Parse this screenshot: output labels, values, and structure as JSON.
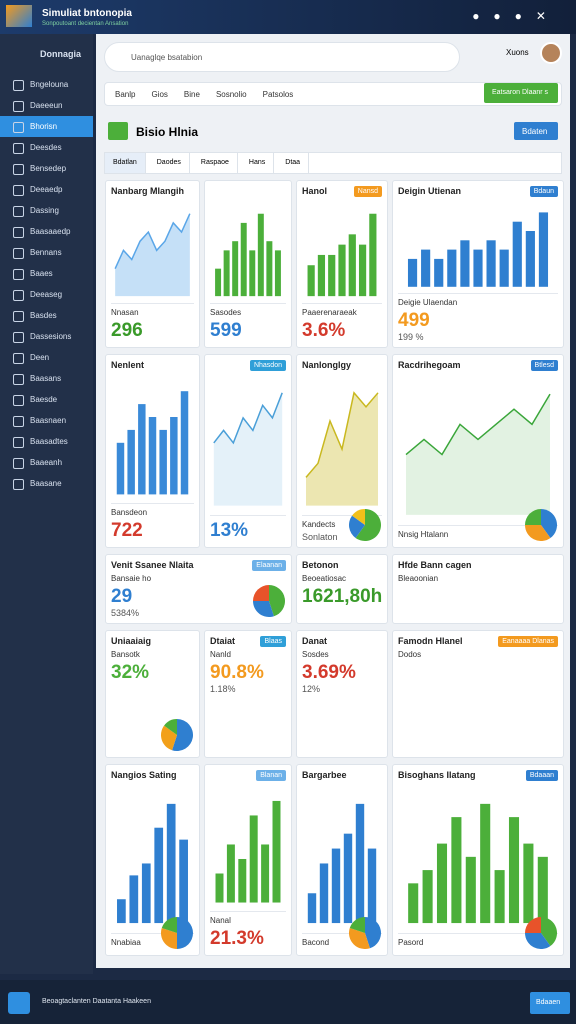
{
  "app": {
    "title": "Simuliat bntonopia",
    "subtitle": "Sonpoutoant decientan Ansation"
  },
  "sidebar": {
    "brand": "Donnagia",
    "items": [
      "Bngelouna",
      "Daeeeun",
      "Bhorisn",
      "Deesdes",
      "Bensedep",
      "Deeaedp",
      "Dassing",
      "Baasaaedp",
      "Bennans",
      "Baaes",
      "Deeaseg",
      "Basdes",
      "Dassesions",
      "Deen",
      "Baasans",
      "Baesde",
      "Baasnaen",
      "Baasadtes",
      "Baaeanh",
      "Baasane"
    ],
    "active": 2
  },
  "search": {
    "placeholder": "Uanaglqe bsatabion",
    "user": "Xuons"
  },
  "filters": [
    "Banlp",
    "Gios",
    "Bine",
    "Sosnolio",
    "Patsolos"
  ],
  "action": "Eatsaron Dlaanr s",
  "section": {
    "title": "Bisio Hlnia",
    "button": "Bdaten"
  },
  "tabs": [
    "Bdatlan",
    "Daodes",
    "Raspaoe",
    "Hans",
    "Dtaa"
  ],
  "cards": [
    {
      "title": "Nanbarg Mlangih",
      "chart": {
        "kind": "area",
        "color": "#5aa6e8",
        "values": [
          3,
          5,
          4,
          6,
          7,
          5,
          6,
          8,
          7,
          9
        ]
      },
      "label": "Nnasan",
      "value": "296",
      "value_color": "#3a9a2a"
    },
    {
      "chart": {
        "kind": "bar",
        "color": "#4caf3a",
        "values": [
          3,
          5,
          6,
          8,
          5,
          9,
          6,
          5
        ]
      },
      "label": "Sasodes",
      "value": "599",
      "value_color": "#2f7fd0"
    },
    {
      "title": "Hanol",
      "chart": {
        "kind": "bar",
        "color": "#4caf3a",
        "values": [
          3,
          4,
          4,
          5,
          6,
          5,
          8
        ]
      },
      "label": "Paaerenaraeak",
      "value": "3.6%",
      "value_color": "#d33a2c",
      "badge": "Nansd",
      "badge_color": "#f39a1f"
    },
    {
      "title": "Deigin Utienan",
      "badge": "Bdaun",
      "badge_color": "#2f7fd0",
      "chart": {
        "kind": "bar",
        "color": "#2f7fd0",
        "values": [
          3,
          4,
          3,
          4,
          5,
          4,
          5,
          4,
          7,
          6,
          8
        ]
      },
      "label": "Deigie Ulaendan",
      "value": "499",
      "value_color": "#f39a1f",
      "extra": "199 %"
    },
    {
      "title": "Nenlent",
      "chart": {
        "kind": "bar",
        "color": "#3a8ad8",
        "values": [
          4,
          5,
          7,
          6,
          5,
          6,
          8
        ]
      },
      "label": "Bansdeon",
      "value": "722",
      "value_color": "#d33a2c"
    },
    {
      "chart": {
        "kind": "line",
        "color": "#4a9fd8",
        "values": [
          5,
          6,
          5,
          7,
          6,
          8,
          7,
          9
        ]
      },
      "badge": "Nhasdon",
      "badge_color": "#2f9fd8",
      "value": "13%",
      "value_color": "#2f7fd0"
    },
    {
      "title": "Nanlonglgy",
      "chart": {
        "kind": "area",
        "color": "#c9b81f",
        "values": [
          2,
          3,
          6,
          4,
          8,
          7,
          8
        ]
      },
      "label": "Kandects",
      "extra": "Sonlaton",
      "pie": {
        "values": [
          60,
          25,
          15
        ],
        "colors": [
          "#4caf3a",
          "#2f7fd0",
          "#f2c01a"
        ]
      }
    },
    {
      "title": "Racdrihegoam",
      "badge": "Btlesd",
      "badge_color": "#2f7fd0",
      "chart": {
        "kind": "line",
        "color": "#3aa63a",
        "values": [
          4,
          5,
          4,
          6,
          5,
          6,
          7,
          6,
          8
        ]
      },
      "label": "Nnsig Htalann",
      "pie": {
        "values": [
          40,
          35,
          25
        ],
        "colors": [
          "#2f7fd0",
          "#f39a1f",
          "#4caf3a"
        ]
      }
    },
    {
      "title": "Venit Ssanee Nlaita",
      "badge": "Elaanan",
      "badge_color": "#6cb0e8",
      "label": "Bansaie ho",
      "value": "29",
      "value_color": "#2f7fd0",
      "extra": "5384%",
      "pie": {
        "values": [
          45,
          30,
          25
        ],
        "colors": [
          "#4caf3a",
          "#2f7fd0",
          "#e8532a"
        ]
      }
    },
    {
      "title": "Betonon",
      "label": "Beoeatiosac",
      "value": "1621,80h",
      "value_color": "#3a9a2a"
    },
    {
      "title": "Hfde Bann cagen",
      "label": "Bleaoonian"
    },
    {
      "title": "Uniaaiaig",
      "value": "32%",
      "value_color": "#4caf3a",
      "label": "Bansotk",
      "pie": {
        "values": [
          55,
          30,
          15
        ],
        "colors": [
          "#2f7fd0",
          "#f2a01a",
          "#4caf3a"
        ]
      }
    },
    {
      "title": "Dtaiat",
      "value": "90.8%",
      "value_color": "#f39a1f",
      "label": "Nanld",
      "extra": "1.18%",
      "badge": "Blaas",
      "badge_color": "#2f9fd8"
    },
    {
      "title": "Danat",
      "value": "3.69%",
      "value_color": "#d33a2c",
      "label": "Sosdes",
      "extra": "12%"
    },
    {
      "title": "Famodn Hlanel",
      "badge": "Eanaaaa Dlanas",
      "badge_color": "#f39a1f",
      "label": "Dodos"
    },
    {
      "title": "Nangios Sating",
      "chart": {
        "kind": "bar",
        "color": "#2f7fd0",
        "values": [
          2,
          4,
          5,
          8,
          10,
          7
        ]
      },
      "label": "Nnabiaa",
      "pie": {
        "values": [
          50,
          30,
          20
        ],
        "colors": [
          "#2f7fd0",
          "#f39a1f",
          "#4caf3a"
        ]
      }
    },
    {
      "chart": {
        "kind": "bar",
        "color": "#4caf3a",
        "values": [
          2,
          4,
          3,
          6,
          4,
          7
        ]
      },
      "label": "Nanal",
      "value": "21.3%",
      "value_color": "#d33a2c",
      "badge": "Blanan",
      "badge_color": "#6cb0e8"
    },
    {
      "title": "Bargarbee",
      "chart": {
        "kind": "bar",
        "color": "#2f7fd0",
        "values": [
          2,
          4,
          5,
          6,
          8,
          5
        ]
      },
      "label": "Bacond",
      "pie": {
        "values": [
          45,
          35,
          20
        ],
        "colors": [
          "#2f7fd0",
          "#f39a1f",
          "#4caf3a"
        ]
      }
    },
    {
      "title": "Bisoghans Ilatang",
      "badge": "Bdaaan",
      "badge_color": "#2f7fd0",
      "chart": {
        "kind": "bar",
        "color": "#4caf3a",
        "values": [
          3,
          4,
          6,
          8,
          5,
          9,
          4,
          8,
          6,
          5
        ]
      },
      "label": "Pasord",
      "pie": {
        "values": [
          40,
          35,
          25
        ],
        "colors": [
          "#4caf3a",
          "#2f7fd0",
          "#e8532a"
        ]
      }
    }
  ],
  "taskbar": {
    "text": "Beoagtaclanten Daatanta Haakeen",
    "button": "Bdaaen"
  }
}
